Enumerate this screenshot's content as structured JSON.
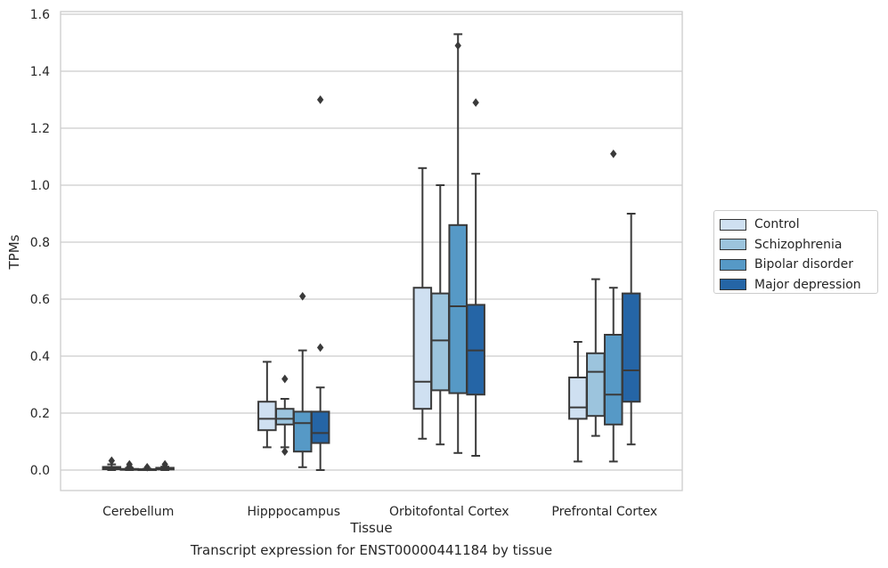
{
  "chart_data": {
    "type": "box",
    "title": "",
    "caption": "Transcript expression for ENST00000441184 by tissue",
    "xlabel": "Tissue",
    "ylabel": "TPMs",
    "ylim": [
      -0.075,
      1.61
    ],
    "yticks": [
      "0.0",
      "0.2",
      "0.4",
      "0.6",
      "0.8",
      "1.0",
      "1.2",
      "1.4",
      "1.6"
    ],
    "ytick_values": [
      0,
      0.2,
      0.4,
      0.6,
      0.8,
      1.0,
      1.2,
      1.4,
      1.6
    ],
    "grid": true,
    "legend_position": "right",
    "categories": [
      "Cerebellum",
      "Hipppocampus",
      "Orbitofontal Cortex",
      "Prefrontal Cortex"
    ],
    "series": [
      {
        "name": "Control",
        "color": "#cfe0f1",
        "boxes": [
          {
            "whislo": 0.0,
            "q1": 0.003,
            "med": 0.006,
            "q3": 0.011,
            "whishi": 0.02,
            "fliers": [
              0.033
            ]
          },
          {
            "whislo": 0.08,
            "q1": 0.14,
            "med": 0.18,
            "q3": 0.24,
            "whishi": 0.38,
            "fliers": []
          },
          {
            "whislo": 0.11,
            "q1": 0.215,
            "med": 0.31,
            "q3": 0.64,
            "whishi": 1.06,
            "fliers": []
          },
          {
            "whislo": 0.03,
            "q1": 0.18,
            "med": 0.22,
            "q3": 0.325,
            "whishi": 0.45,
            "fliers": []
          }
        ]
      },
      {
        "name": "Schizophrenia",
        "color": "#9cc4dd",
        "boxes": [
          {
            "whislo": 0.0,
            "q1": 0.001,
            "med": 0.002,
            "q3": 0.004,
            "whishi": 0.008,
            "fliers": [
              0.012,
              0.02
            ]
          },
          {
            "whislo": 0.08,
            "q1": 0.16,
            "med": 0.18,
            "q3": 0.215,
            "whishi": 0.25,
            "fliers": [
              0.32,
              0.065
            ]
          },
          {
            "whislo": 0.09,
            "q1": 0.28,
            "med": 0.455,
            "q3": 0.62,
            "whishi": 1.0,
            "fliers": []
          },
          {
            "whislo": 0.12,
            "q1": 0.19,
            "med": 0.345,
            "q3": 0.41,
            "whishi": 0.67,
            "fliers": []
          }
        ]
      },
      {
        "name": "Bipolar disorder",
        "color": "#5699c6",
        "boxes": [
          {
            "whislo": 0.0,
            "q1": 0.001,
            "med": 0.002,
            "q3": 0.003,
            "whishi": 0.005,
            "fliers": [
              0.01
            ]
          },
          {
            "whislo": 0.01,
            "q1": 0.065,
            "med": 0.165,
            "q3": 0.205,
            "whishi": 0.42,
            "fliers": [
              0.61
            ]
          },
          {
            "whislo": 0.06,
            "q1": 0.27,
            "med": 0.575,
            "q3": 0.86,
            "whishi": 1.53,
            "fliers": [
              1.49
            ]
          },
          {
            "whislo": 0.03,
            "q1": 0.16,
            "med": 0.265,
            "q3": 0.475,
            "whishi": 0.64,
            "fliers": [
              1.11
            ]
          }
        ]
      },
      {
        "name": "Major depression",
        "color": "#2565a6",
        "boxes": [
          {
            "whislo": 0.0,
            "q1": 0.002,
            "med": 0.004,
            "q3": 0.008,
            "whishi": 0.012,
            "fliers": [
              0.02
            ]
          },
          {
            "whislo": 0.0,
            "q1": 0.095,
            "med": 0.13,
            "q3": 0.205,
            "whishi": 0.29,
            "fliers": [
              1.3,
              0.43
            ]
          },
          {
            "whislo": 0.05,
            "q1": 0.265,
            "med": 0.42,
            "q3": 0.58,
            "whishi": 1.04,
            "fliers": [
              1.29
            ]
          },
          {
            "whislo": 0.09,
            "q1": 0.24,
            "med": 0.35,
            "q3": 0.62,
            "whishi": 0.9,
            "fliers": []
          }
        ]
      }
    ]
  }
}
